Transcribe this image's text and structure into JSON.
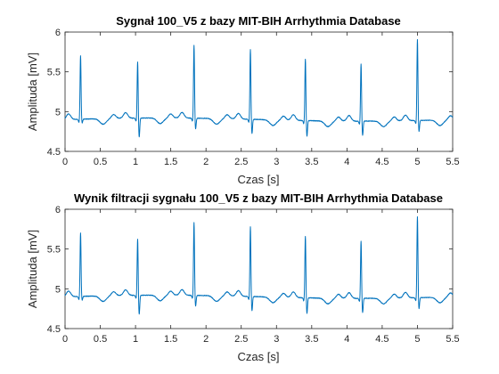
{
  "chart_data": [
    {
      "type": "line",
      "title": "Sygnał 100_V5 z bazy MIT-BIH Arrhythmia Database",
      "xlabel": "Czas [s]",
      "ylabel": "Amplituda [mV]",
      "xlim": [
        0,
        5.5
      ],
      "ylim": [
        4.5,
        6
      ],
      "xticks": [
        "0",
        "0.5",
        "1",
        "1.5",
        "2",
        "2.5",
        "3",
        "3.5",
        "4",
        "4.5",
        "5",
        "5.5"
      ],
      "yticks": [
        "4.5",
        "5",
        "5.5",
        "6"
      ],
      "grid": false,
      "line_color": "#0072BD",
      "baseline_mV": 4.9,
      "r_peaks": [
        {
          "t": 0.22,
          "r": 5.7,
          "s": 4.85
        },
        {
          "t": 1.03,
          "r": 5.61,
          "s": 4.66
        },
        {
          "t": 1.83,
          "r": 5.82,
          "s": 4.76
        },
        {
          "t": 2.63,
          "r": 5.78,
          "s": 4.72
        },
        {
          "t": 3.41,
          "r": 5.68,
          "s": 4.7
        },
        {
          "t": 4.2,
          "r": 5.62,
          "s": 4.72
        },
        {
          "t": 5.0,
          "r": 5.92,
          "s": 4.76
        }
      ]
    },
    {
      "type": "line",
      "title": "Wynik filtracji sygnału 100_V5 z bazy MIT-BIH Arrhythmia Database",
      "xlabel": "Czas [s]",
      "ylabel": "Amplituda [mV]",
      "xlim": [
        0,
        5.5
      ],
      "ylim": [
        4.5,
        6
      ],
      "xticks": [
        "0",
        "0.5",
        "1",
        "1.5",
        "2",
        "2.5",
        "3",
        "3.5",
        "4",
        "4.5",
        "5",
        "5.5"
      ],
      "yticks": [
        "4.5",
        "5",
        "5.5",
        "6"
      ],
      "grid": false,
      "line_color": "#0072BD",
      "baseline_mV": 4.9,
      "r_peaks": [
        {
          "t": 0.22,
          "r": 5.7,
          "s": 4.85
        },
        {
          "t": 1.03,
          "r": 5.61,
          "s": 4.66
        },
        {
          "t": 1.83,
          "r": 5.82,
          "s": 4.76
        },
        {
          "t": 2.63,
          "r": 5.78,
          "s": 4.72
        },
        {
          "t": 3.41,
          "r": 5.68,
          "s": 4.7
        },
        {
          "t": 4.2,
          "r": 5.62,
          "s": 4.72
        },
        {
          "t": 5.0,
          "r": 5.92,
          "s": 4.76
        }
      ]
    }
  ]
}
